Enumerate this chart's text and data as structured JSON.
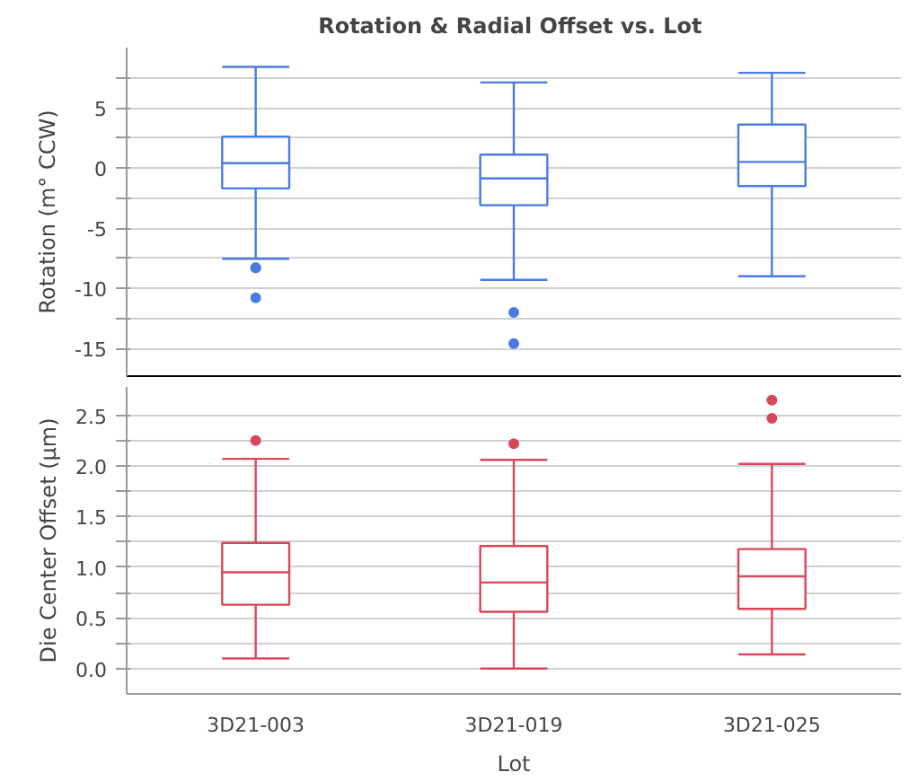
{
  "chart_data": [
    {
      "type": "box",
      "title": "Rotation &  Radial Offset vs. Lot",
      "ylabel": "Rotation (m° CCW)",
      "categories": [
        null,
        null,
        null
      ],
      "color": "#4a7be0",
      "ylim": [
        -17.3,
        10
      ],
      "yticks": [
        {
          "value": -15,
          "label": "-15"
        },
        {
          "value": -12.5,
          "label": null
        },
        {
          "value": -10,
          "label": "-10"
        },
        {
          "value": -7.5,
          "label": null
        },
        {
          "value": -5,
          "label": "-5"
        },
        {
          "value": -2.5,
          "label": null
        },
        0,
        {
          "value": 2.5,
          "label": null
        },
        5,
        {
          "value": 7.5,
          "label": null
        }
      ],
      "grid": "y",
      "boxes": [
        {
          "low": -7.55,
          "q1": -1.7,
          "median": 0.4,
          "q3": 2.6,
          "high": 8.4,
          "outliers": [
            -8.3,
            -8.3,
            -10.8
          ]
        },
        {
          "low": -9.3,
          "q1": -3.1,
          "median": -0.87,
          "q3": 1.1,
          "high": 7.1,
          "outliers": [
            -12.0,
            -14.6
          ]
        },
        {
          "low": -9.0,
          "q1": -1.5,
          "median": 0.5,
          "q3": 3.6,
          "high": 7.9
        }
      ]
    },
    {
      "type": "box",
      "xlabel": "Lot",
      "ylabel": "Die Center Offset (µm)",
      "categories": [
        "3D21-003",
        "3D21-019",
        "3D21-025"
      ],
      "color": "#d9475b",
      "ylim": [
        -0.25,
        2.78
      ],
      "yticks": [
        {
          "value": 0,
          "label": "0.0"
        },
        {
          "value": 0.25,
          "label": null
        },
        {
          "value": 0.5,
          "label": "0.5"
        },
        {
          "value": 0.75,
          "label": null
        },
        {
          "value": 1,
          "label": "1.0"
        },
        {
          "value": 1.25,
          "label": null
        },
        {
          "value": 1.5,
          "label": "1.5"
        },
        {
          "value": 1.75,
          "label": null
        },
        {
          "value": 2,
          "label": "2.0"
        },
        {
          "value": 2.25,
          "label": null
        },
        {
          "value": 2.5,
          "label": "2.5"
        }
      ],
      "grid": "y",
      "boxes": [
        {
          "low": 0.1,
          "q1": 0.63,
          "median": 0.95,
          "q3": 1.24,
          "high": 2.07,
          "outliers": [
            2.25
          ]
        },
        {
          "low": 0.0,
          "q1": 0.56,
          "median": 0.85,
          "q3": 1.21,
          "high": 2.06,
          "outliers": [
            2.22
          ]
        },
        {
          "low": 0.14,
          "q1": 0.59,
          "median": 0.91,
          "q3": 1.18,
          "high": 2.02,
          "outliers": [
            2.65,
            2.47
          ]
        }
      ]
    }
  ]
}
